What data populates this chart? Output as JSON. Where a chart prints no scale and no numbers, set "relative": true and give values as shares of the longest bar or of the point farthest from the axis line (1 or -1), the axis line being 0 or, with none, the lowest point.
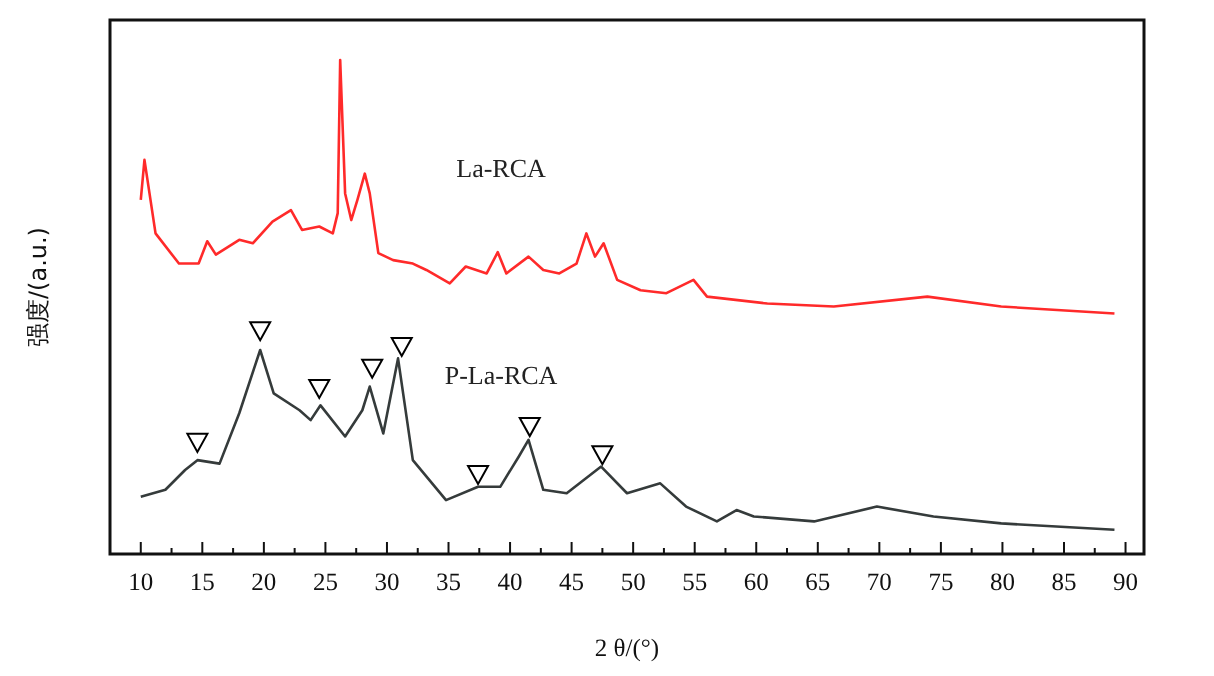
{
  "chart_data": {
    "type": "line",
    "relative": true,
    "xlabel": "2 θ/(°)",
    "ylabel": "强度/(a.u.)",
    "xlim": [
      7.5,
      91.5
    ],
    "xticks": [
      10,
      15,
      20,
      25,
      30,
      35,
      40,
      45,
      50,
      55,
      60,
      65,
      70,
      75,
      80,
      85,
      90
    ],
    "tick_labels": "x",
    "grid": false,
    "series": [
      {
        "name": "La-RCA",
        "color": "#ff2a2a",
        "x": [
          10.0,
          10.3,
          11.2,
          13.1,
          14.7,
          15.4,
          16.1,
          18.0,
          19.1,
          20.7,
          22.2,
          23.1,
          24.5,
          25.6,
          26.0,
          26.2,
          26.6,
          27.1,
          27.6,
          28.2,
          28.6,
          29.3,
          30.5,
          32.1,
          33.2,
          35.1,
          36.4,
          38.1,
          39.0,
          39.7,
          41.5,
          42.7,
          44.0,
          45.4,
          46.2,
          46.9,
          47.6,
          48.7,
          50.6,
          52.7,
          54.9,
          56.0,
          60.9,
          66.3,
          73.9,
          79.9,
          89.1
        ],
        "values": [
          0.717,
          0.798,
          0.649,
          0.588,
          0.588,
          0.633,
          0.606,
          0.636,
          0.629,
          0.673,
          0.696,
          0.656,
          0.663,
          0.649,
          0.69,
          1.0,
          0.73,
          0.676,
          0.717,
          0.77,
          0.73,
          0.609,
          0.595,
          0.588,
          0.575,
          0.548,
          0.582,
          0.568,
          0.611,
          0.568,
          0.602,
          0.575,
          0.568,
          0.588,
          0.649,
          0.602,
          0.629,
          0.555,
          0.534,
          0.528,
          0.555,
          0.521,
          0.507,
          0.501,
          0.521,
          0.501,
          0.487
        ]
      },
      {
        "name": "P-La-RCA",
        "color": "#353b3b",
        "x": [
          10.0,
          12.0,
          13.6,
          14.6,
          16.4,
          18.0,
          19.7,
          20.8,
          22.9,
          23.8,
          24.6,
          26.6,
          28.0,
          28.6,
          29.7,
          30.9,
          32.1,
          34.8,
          37.4,
          39.2,
          40.7,
          41.5,
          42.7,
          44.6,
          47.4,
          49.5,
          52.2,
          54.3,
          56.8,
          58.4,
          59.8,
          64.7,
          69.8,
          74.4,
          79.9,
          89.1
        ],
        "values": [
          0.116,
          0.13,
          0.17,
          0.19,
          0.183,
          0.285,
          0.413,
          0.325,
          0.291,
          0.271,
          0.301,
          0.238,
          0.291,
          0.339,
          0.244,
          0.396,
          0.19,
          0.109,
          0.136,
          0.136,
          0.197,
          0.231,
          0.13,
          0.123,
          0.177,
          0.123,
          0.143,
          0.096,
          0.066,
          0.089,
          0.076,
          0.066,
          0.096,
          0.076,
          0.062,
          0.049
        ]
      },
      {
        "type": "scatter",
        "marker": "triangle",
        "color": "#000000",
        "x": [
          14.6,
          19.7,
          24.5,
          28.8,
          31.2,
          37.4,
          41.6,
          47.5
        ],
        "values": [
          0.227,
          0.453,
          0.336,
          0.377,
          0.421,
          0.162,
          0.259,
          0.202
        ]
      }
    ]
  }
}
